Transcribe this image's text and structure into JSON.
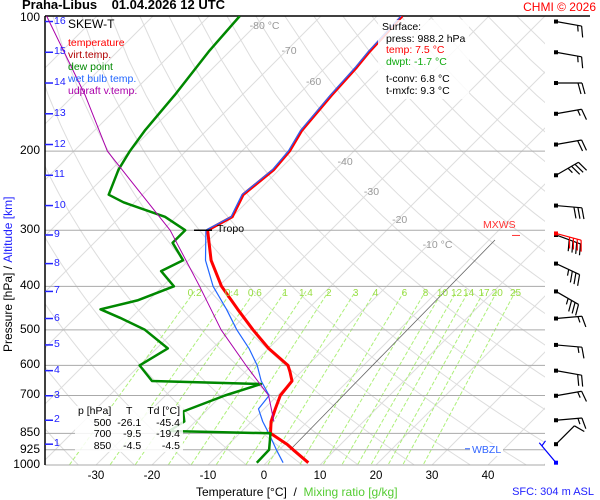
{
  "header": {
    "station": "Praha-Libus",
    "datetime": "01.04.2026 12 UTC",
    "copyright": "CHMI © 2026"
  },
  "legend": {
    "title": "SKEW-T",
    "items": [
      {
        "label": "temperature",
        "color": "#ff0000"
      },
      {
        "label": "virt.temp.",
        "color": "#b00000"
      },
      {
        "label": "dew point",
        "color": "#008800"
      },
      {
        "label": "wet bulb temp.",
        "color": "#2266ff"
      },
      {
        "label": "udpraft v.temp.",
        "color": "#aa00aa"
      }
    ]
  },
  "surface": {
    "title": "Surface:",
    "press": "press: 988.2 hPa",
    "temp": "temp: 7.5 °C",
    "dwpt": "dwpt: -1.7 °C",
    "tconv": "t-conv: 6.8 °C",
    "tmxfc": "t-mxfc: 9.3 °C"
  },
  "table": {
    "headers": [
      "p [hPa]",
      "T",
      "Td [°C]"
    ],
    "rows": [
      [
        "500",
        "-26.1",
        "-45.4"
      ],
      [
        "700",
        "-9.5",
        "-19.4"
      ],
      [
        "850",
        "-4.5",
        "-4.5"
      ]
    ]
  },
  "axes": {
    "xlabel": "Temperature [°C]",
    "xlabel_sep": "/",
    "xlabel2": "Mixing ratio [g/kg]",
    "ylabel": "Pressure [hPa]",
    "ylabel_sep": "/",
    "ylabel2": "Altitude [km]",
    "sfc_elevation": "SFC: 304 m ASL"
  },
  "markers": {
    "tropo": "Tropo",
    "mxws": "MXWS",
    "wbzl": "WBZL"
  },
  "chart_data": {
    "type": "line",
    "title": "SKEW-T Praha-Libus 01.04.2026 12 UTC",
    "pressure_levels": [
      "100",
      "200",
      "300",
      "400",
      "500",
      "600",
      "700",
      "850",
      "925",
      "1000"
    ],
    "temperature_ticks": [
      "-30",
      "-20",
      "-10",
      "0",
      "10",
      "20",
      "30",
      "40"
    ],
    "altitude_km_ticks": [
      "1",
      "2",
      "3",
      "4",
      "5",
      "6",
      "7",
      "8",
      "9",
      "10",
      "11",
      "12",
      "13",
      "14",
      "15",
      "16"
    ],
    "isotherm_labels": [
      {
        "text": "-80 °C",
        "T": -80,
        "p": 106
      },
      {
        "text": "-70",
        "T": -70,
        "p": 120
      },
      {
        "text": "-60",
        "T": -60,
        "p": 141
      },
      {
        "text": "-40",
        "T": -40,
        "p": 213
      },
      {
        "text": "-30",
        "T": -30,
        "p": 248
      },
      {
        "text": "-20",
        "T": -20,
        "p": 286
      },
      {
        "text": "-10 °C",
        "T": -10,
        "p": 326
      }
    ],
    "mixing_ratio_labels": [
      "0.2",
      "0.4",
      "0.6",
      "1",
      "1.4",
      "2",
      "3",
      "4",
      "6",
      "8",
      "10",
      "12",
      "14",
      "17",
      "20",
      "25"
    ],
    "ylim_hpa": [
      1000,
      100
    ],
    "xlim_c_at_1000": [
      -40,
      50
    ],
    "series": [
      {
        "name": "temperature",
        "color": "#ff0000",
        "points": [
          [
            988.2,
            7.5
          ],
          [
            925,
            2.5
          ],
          [
            900,
            0.5
          ],
          [
            870,
            -2.5
          ],
          [
            850,
            -4.5
          ],
          [
            800,
            -6.5
          ],
          [
            750,
            -8
          ],
          [
            700,
            -9.5
          ],
          [
            650,
            -10
          ],
          [
            620,
            -12
          ],
          [
            600,
            -13.5
          ],
          [
            550,
            -20
          ],
          [
            500,
            -26.1
          ],
          [
            450,
            -32.5
          ],
          [
            400,
            -39.5
          ],
          [
            350,
            -46
          ],
          [
            300,
            -52
          ],
          [
            280,
            -50
          ],
          [
            250,
            -52
          ],
          [
            220,
            -51
          ],
          [
            200,
            -51.5
          ],
          [
            180,
            -53
          ],
          [
            150,
            -54
          ],
          [
            130,
            -54.5
          ],
          [
            120,
            -55
          ],
          [
            100,
            -55.5
          ]
        ]
      },
      {
        "name": "wet bulb temp.",
        "color": "#2266ff",
        "points": [
          [
            988.2,
            3
          ],
          [
            925,
            -0.5
          ],
          [
            850,
            -4.8
          ],
          [
            800,
            -8
          ],
          [
            750,
            -11
          ],
          [
            700,
            -11.5
          ],
          [
            650,
            -15.5
          ],
          [
            600,
            -19
          ],
          [
            550,
            -23.5
          ],
          [
            500,
            -29
          ],
          [
            450,
            -34.5
          ],
          [
            400,
            -41
          ],
          [
            350,
            -47
          ],
          [
            300,
            -52.3
          ],
          [
            280,
            -50.2
          ],
          [
            250,
            -52.2
          ],
          [
            220,
            -51.2
          ],
          [
            200,
            -51.7
          ],
          [
            180,
            -53.2
          ],
          [
            150,
            -54.2
          ],
          [
            130,
            -54.7
          ],
          [
            120,
            -55.2
          ],
          [
            100,
            -55.7
          ]
        ]
      },
      {
        "name": "dew point",
        "color": "#008800",
        "points": [
          [
            988.2,
            -1.7
          ],
          [
            925,
            -1.8
          ],
          [
            850,
            -4.5
          ],
          [
            840,
            -23
          ],
          [
            800,
            -22
          ],
          [
            760,
            -24
          ],
          [
            700,
            -19.4
          ],
          [
            660,
            -15
          ],
          [
            650,
            -35
          ],
          [
            600,
            -40
          ],
          [
            550,
            -38
          ],
          [
            500,
            -45.4
          ],
          [
            470,
            -52
          ],
          [
            450,
            -57
          ],
          [
            430,
            -52
          ],
          [
            400,
            -48
          ],
          [
            370,
            -53
          ],
          [
            350,
            -51
          ],
          [
            320,
            -56
          ],
          [
            300,
            -56
          ],
          [
            280,
            -62
          ],
          [
            260,
            -72
          ],
          [
            250,
            -76
          ],
          [
            220,
            -78.7
          ],
          [
            200,
            -80
          ],
          [
            180,
            -81
          ],
          [
            150,
            -82
          ],
          [
            120,
            -83.7
          ],
          [
            100,
            -84.5
          ]
        ]
      },
      {
        "name": "udpraft v.temp.",
        "color": "#aa00aa",
        "points": [
          [
            800,
            -6
          ],
          [
            700,
            -11.6
          ],
          [
            600,
            -21
          ],
          [
            500,
            -31.8
          ],
          [
            400,
            -43.4
          ],
          [
            300,
            -58.7
          ],
          [
            200,
            -84
          ],
          [
            150,
            -98
          ],
          [
            100,
            -119
          ]
        ]
      }
    ],
    "wind_barbs": [
      {
        "km": 16,
        "dir": 280,
        "kt": 15
      },
      {
        "km": 15,
        "dir": 280,
        "kt": 15
      },
      {
        "km": 14,
        "dir": 270,
        "kt": 20
      },
      {
        "km": 13,
        "dir": 260,
        "kt": 15
      },
      {
        "km": 12,
        "dir": 260,
        "kt": 20
      },
      {
        "km": 11,
        "dir": 240,
        "kt": 35
      },
      {
        "km": 10,
        "dir": 275,
        "kt": 30
      },
      {
        "km": 9,
        "dir": 290,
        "kt": 40
      },
      {
        "km": 8,
        "dir": 295,
        "kt": 35
      },
      {
        "km": 7,
        "dir": 300,
        "kt": 35
      },
      {
        "km": 6,
        "dir": 265,
        "kt": 15
      },
      {
        "km": 5,
        "dir": 275,
        "kt": 15
      },
      {
        "km": 4,
        "dir": 280,
        "kt": 20
      },
      {
        "km": 3,
        "dir": 260,
        "kt": 15
      },
      {
        "km": 2,
        "dir": 265,
        "kt": 15
      },
      {
        "km": 1,
        "dir": 225,
        "kt": 10
      }
    ],
    "max_wind_barb": {
      "p": 305,
      "dir": 285,
      "kt": 40
    },
    "surface_wind_barb": {
      "p": 988.2,
      "dir": 140,
      "kt": 5
    },
    "tropopause_hpa": 300,
    "wbzl_hpa": 920
  }
}
